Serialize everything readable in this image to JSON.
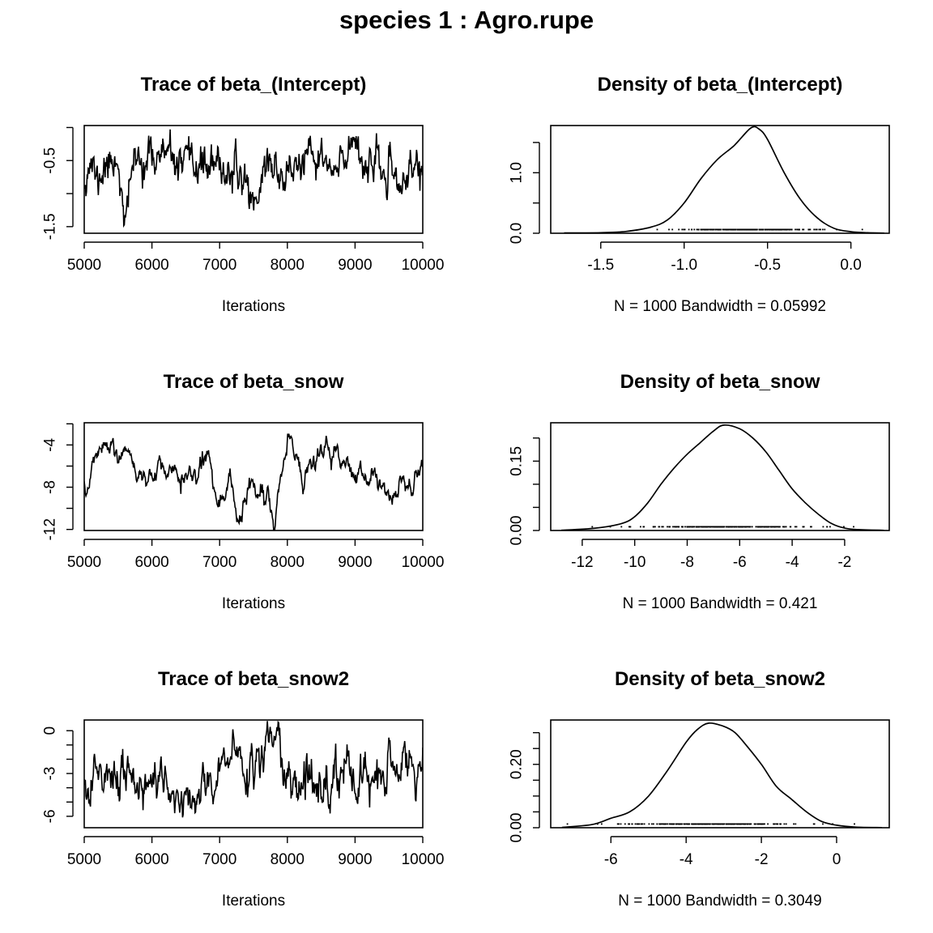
{
  "title": "species 1 : Agro.rupe",
  "chart_data": [
    {
      "type": "line",
      "kind": "trace",
      "title": "Trace of beta_(Intercept)",
      "xlabel": "Iterations",
      "ylabel": "",
      "xlim": [
        5000,
        10000
      ],
      "ylim": [
        -1.6,
        0.03
      ],
      "xticks": [
        "5000",
        "6000",
        "7000",
        "8000",
        "9000",
        "10000"
      ],
      "yticks": [
        0.0,
        -0.5,
        -1.0,
        -1.5
      ],
      "ytick_labels": [
        "-0.5",
        "-1.5"
      ],
      "ytick_label_values": [
        -0.5,
        -1.5
      ],
      "series": [
        {
          "seed": 11,
          "n": 600,
          "mean": -0.6,
          "sd": 0.19,
          "phi": 0.55,
          "x": [
            5000,
            5100,
            5200,
            5300,
            5500,
            5600,
            5700,
            5900,
            6000,
            6200,
            6400,
            6700,
            7100,
            7400,
            7500,
            7600,
            7700,
            7900,
            8200,
            8500,
            8700,
            8900,
            9000,
            9100,
            9300,
            9500,
            9700,
            9900,
            10000
          ],
          "y": [
            -0.75,
            -0.5,
            -0.85,
            -0.6,
            -0.45,
            -1.6,
            -0.55,
            -0.5,
            -0.45,
            -0.4,
            -0.6,
            -0.55,
            -0.65,
            -0.8,
            -1.15,
            -0.9,
            -0.45,
            -0.75,
            -0.55,
            -0.45,
            -0.75,
            -0.35,
            -0.05,
            -0.5,
            -0.6,
            -0.75,
            -0.85,
            -0.55,
            -0.6
          ]
        }
      ]
    },
    {
      "type": "line",
      "kind": "density",
      "title": "Density of beta_(Intercept)",
      "xlabel": "N = 1000   Bandwidth = 0.05992",
      "ylabel": "",
      "xlim": [
        -1.8,
        0.23
      ],
      "ylim": [
        0,
        1.78
      ],
      "xticks": [
        "-1.5",
        "-1.0",
        "-0.5",
        "0.0"
      ],
      "yticks": [
        0.0,
        0.5,
        1.0,
        1.5
      ],
      "ytick_labels": [
        "0.0",
        "1.0"
      ],
      "ytick_label_values": [
        0.0,
        1.0
      ],
      "series": [
        {
          "x": [
            -1.72,
            -1.5,
            -1.35,
            -1.2,
            -1.1,
            -1.0,
            -0.9,
            -0.8,
            -0.7,
            -0.6,
            -0.55,
            -0.5,
            -0.4,
            -0.3,
            -0.2,
            -0.1,
            0.0,
            0.1,
            0.2
          ],
          "y": [
            0.005,
            0.01,
            0.03,
            0.1,
            0.22,
            0.5,
            0.9,
            1.22,
            1.45,
            1.74,
            1.72,
            1.55,
            1.0,
            0.55,
            0.25,
            0.08,
            0.025,
            0.008,
            0.003
          ]
        }
      ],
      "rug": {
        "seed": 23,
        "mean": -0.62,
        "sd": 0.21,
        "n": 240
      }
    },
    {
      "type": "line",
      "kind": "trace",
      "title": "Trace of beta_snow",
      "xlabel": "Iterations",
      "ylabel": "",
      "xlim": [
        5000,
        10000
      ],
      "ylim": [
        -12.1,
        -1.9
      ],
      "xticks": [
        "5000",
        "6000",
        "7000",
        "8000",
        "9000",
        "10000"
      ],
      "yticks": [
        -2,
        -4,
        -6,
        -8,
        -10,
        -12
      ],
      "ytick_labels": [
        "-4",
        "-8",
        "-12"
      ],
      "ytick_label_values": [
        -4,
        -8,
        -12
      ],
      "series": [
        {
          "seed": 5,
          "n": 600,
          "mean": -6.6,
          "sd": 1.6,
          "phi": 0.94,
          "x": [
            5000,
            5200,
            5400,
            5600,
            5800,
            6000,
            6200,
            6500,
            6800,
            7000,
            7200,
            7400,
            7500,
            7700,
            7800,
            7900,
            8000,
            8100,
            8300,
            8500,
            8700,
            8900,
            9100,
            9300,
            9500,
            9700,
            9900,
            10000
          ],
          "y": [
            -7.5,
            -6.5,
            -5.0,
            -5.5,
            -5.8,
            -6.0,
            -6.5,
            -5.5,
            -6.0,
            -7.0,
            -8.0,
            -8.5,
            -7.0,
            -8.5,
            -11.5,
            -7.5,
            -3.5,
            -5.0,
            -5.5,
            -5.0,
            -6.5,
            -7.5,
            -7.0,
            -7.5,
            -8.5,
            -8.0,
            -8.0,
            -6.5
          ]
        }
      ]
    },
    {
      "type": "line",
      "kind": "density",
      "title": "Density of beta_snow",
      "xlabel": "N = 1000   Bandwidth = 0.421",
      "ylabel": "",
      "xlim": [
        -13.2,
        -0.3
      ],
      "ylim": [
        0,
        0.233
      ],
      "xticks": [
        "-12",
        "-10",
        "-8",
        "-6",
        "-4",
        "-2"
      ],
      "yticks": [
        0.0,
        0.05,
        0.1,
        0.15,
        0.2
      ],
      "ytick_labels": [
        "0.00",
        "0.15"
      ],
      "ytick_label_values": [
        0.0,
        0.15
      ],
      "series": [
        {
          "x": [
            -12.8,
            -11.5,
            -10.5,
            -10.0,
            -9.5,
            -9.0,
            -8.5,
            -8.0,
            -7.5,
            -7.0,
            -6.6,
            -6.0,
            -5.5,
            -5.0,
            -4.5,
            -4.0,
            -3.5,
            -3.0,
            -2.5,
            -2.0,
            -1.5,
            -0.5
          ],
          "y": [
            0.0005,
            0.005,
            0.015,
            0.03,
            0.06,
            0.1,
            0.135,
            0.165,
            0.19,
            0.215,
            0.228,
            0.22,
            0.2,
            0.17,
            0.13,
            0.09,
            0.06,
            0.035,
            0.015,
            0.005,
            0.002,
            0.0003
          ]
        }
      ],
      "rug": {
        "seed": 31,
        "mean": -6.5,
        "sd": 1.55,
        "n": 240
      }
    },
    {
      "type": "line",
      "kind": "trace",
      "title": "Trace of beta_snow2",
      "xlabel": "Iterations",
      "ylabel": "",
      "xlim": [
        5000,
        10000
      ],
      "ylim": [
        -6.8,
        0.75
      ],
      "xticks": [
        "5000",
        "6000",
        "7000",
        "8000",
        "9000",
        "10000"
      ],
      "yticks": [
        0,
        -1,
        -2,
        -3,
        -4,
        -5,
        -6
      ],
      "ytick_labels": [
        "0",
        "-3",
        "-6"
      ],
      "ytick_label_values": [
        0,
        -3,
        -6
      ],
      "series": [
        {
          "seed": 17,
          "n": 600,
          "mean": -3.2,
          "sd": 1.25,
          "phi": 0.72,
          "x": [
            5000,
            5200,
            5400,
            5600,
            5800,
            6000,
            6200,
            6500,
            6800,
            7000,
            7100,
            7300,
            7600,
            7750,
            7900,
            8000,
            8200,
            8400,
            8600,
            8800,
            9000,
            9200,
            9400,
            9600,
            9800,
            10000
          ],
          "y": [
            -4.0,
            -3.5,
            -3.0,
            -3.2,
            -3.5,
            -4.0,
            -3.5,
            -5.5,
            -4.0,
            -3.0,
            -2.5,
            -2.0,
            -3.0,
            0.3,
            -2.0,
            -4.0,
            -3.5,
            -4.0,
            -3.5,
            -3.0,
            -2.5,
            -3.0,
            -2.5,
            -3.0,
            -2.5,
            -2.5
          ]
        }
      ]
    },
    {
      "type": "line",
      "kind": "density",
      "title": "Density of beta_snow2",
      "xlabel": "N = 1000   Bandwidth = 0.3049",
      "ylabel": "",
      "xlim": [
        -7.6,
        1.4
      ],
      "ylim": [
        0,
        0.34
      ],
      "xticks": [
        "-6",
        "-4",
        "-2",
        "0"
      ],
      "yticks": [
        0.0,
        0.05,
        0.1,
        0.15,
        0.2,
        0.25,
        0.3
      ],
      "ytick_labels": [
        "0.00",
        "0.20"
      ],
      "ytick_label_values": [
        0.0,
        0.2
      ],
      "series": [
        {
          "x": [
            -7.3,
            -6.5,
            -6.0,
            -5.5,
            -5.0,
            -4.5,
            -4.0,
            -3.7,
            -3.4,
            -3.0,
            -2.7,
            -2.4,
            -2.0,
            -1.6,
            -1.2,
            -0.8,
            -0.4,
            0.0,
            0.5,
            1.2
          ],
          "y": [
            0.001,
            0.01,
            0.03,
            0.05,
            0.1,
            0.18,
            0.27,
            0.31,
            0.33,
            0.32,
            0.3,
            0.26,
            0.2,
            0.13,
            0.09,
            0.05,
            0.02,
            0.008,
            0.002,
            0.0005
          ]
        }
      ],
      "rug": {
        "seed": 41,
        "mean": -3.3,
        "sd": 1.15,
        "n": 240
      }
    }
  ]
}
